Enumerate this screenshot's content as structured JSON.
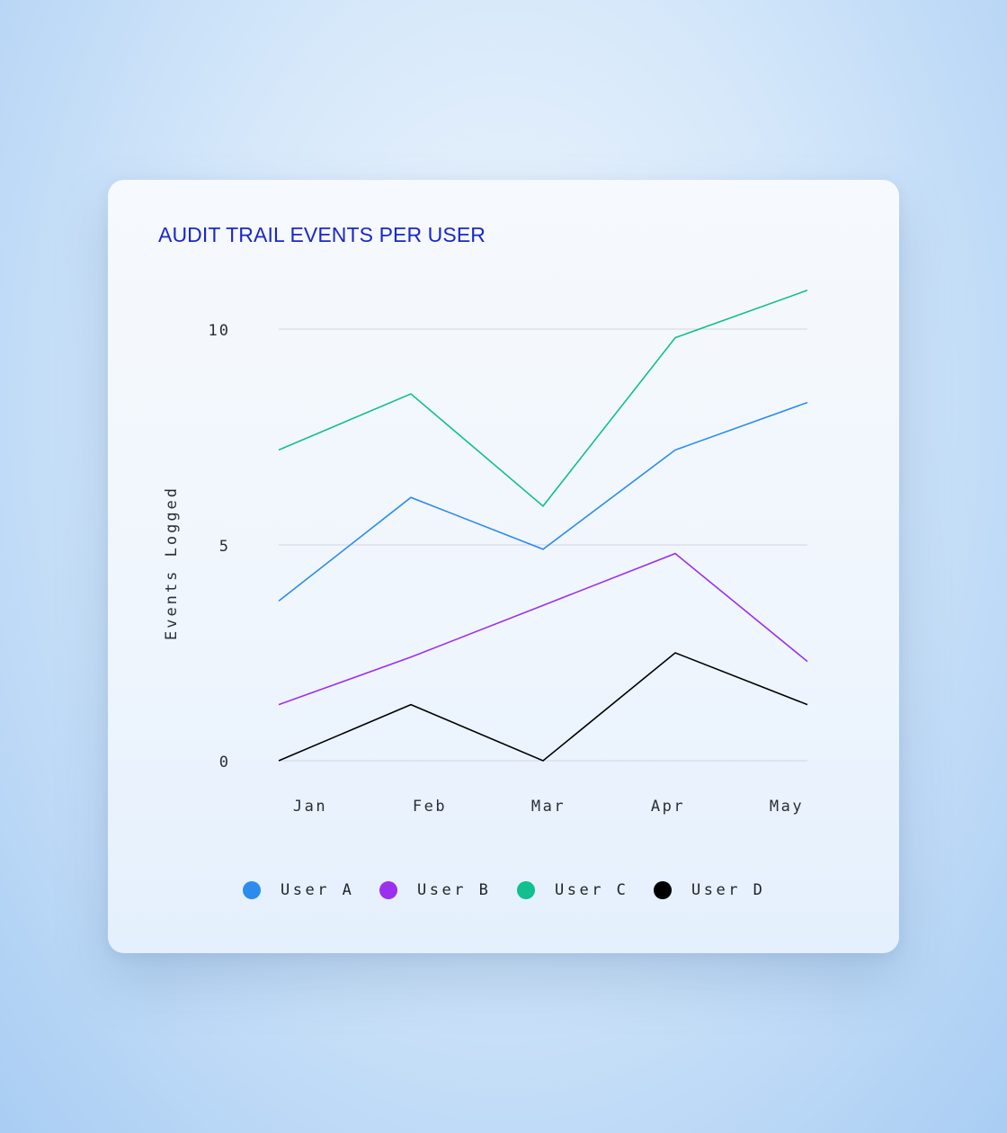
{
  "chart_data": {
    "type": "line",
    "title": "AUDIT TRAIL EVENTS PER USER",
    "xlabel": "",
    "ylabel": "Events Logged",
    "categories": [
      "Jan",
      "Feb",
      "Mar",
      "Apr",
      "May"
    ],
    "yticks": [
      0,
      5,
      10
    ],
    "ylim": [
      0,
      11
    ],
    "grid": true,
    "legend_position": "bottom",
    "series": [
      {
        "name": "User A",
        "color": "#2b8cee",
        "values": [
          3.7,
          6.1,
          4.9,
          7.2,
          8.3
        ]
      },
      {
        "name": "User B",
        "color": "#9b30ef",
        "values": [
          1.3,
          2.4,
          3.6,
          4.8,
          2.3
        ]
      },
      {
        "name": "User C",
        "color": "#12bf8e",
        "values": [
          7.2,
          8.5,
          5.9,
          9.8,
          10.9
        ]
      },
      {
        "name": "User D",
        "color": "#000000",
        "values": [
          0,
          1.3,
          0,
          2.5,
          1.3
        ]
      }
    ]
  }
}
